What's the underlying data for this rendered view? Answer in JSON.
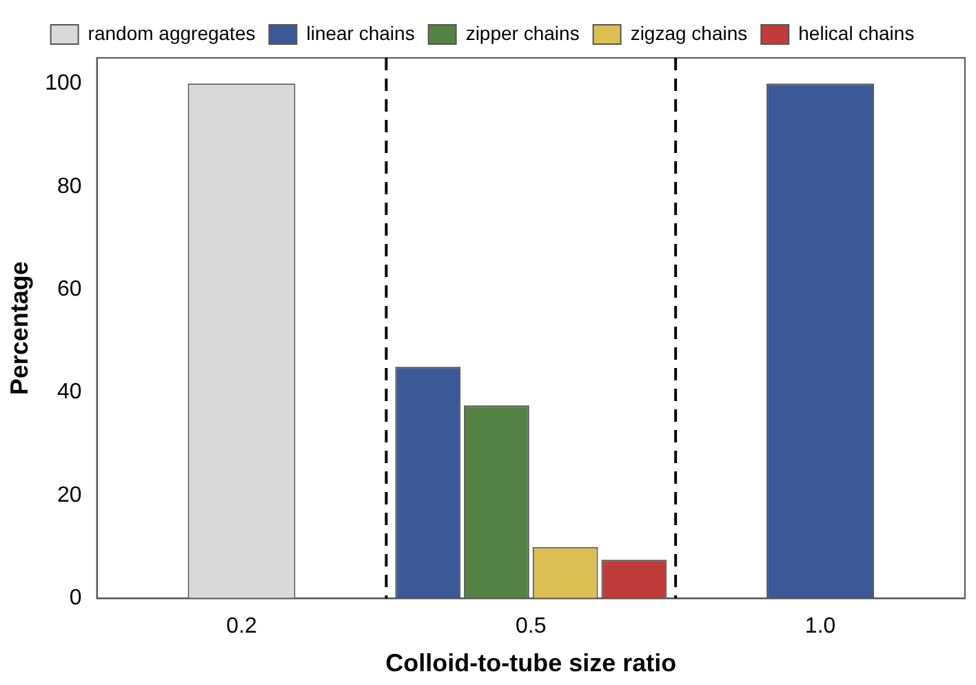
{
  "chart_data": {
    "type": "bar",
    "xlabel": "Colloid-to-tube size ratio",
    "ylabel": "Percentage",
    "categories": [
      "0.2",
      "0.5",
      "1.0"
    ],
    "series": [
      {
        "name": "random aggregates",
        "color": "#d9d9d9",
        "values": [
          100,
          null,
          null
        ]
      },
      {
        "name": "linear chains",
        "color": "#3d5896",
        "values": [
          null,
          45,
          100
        ]
      },
      {
        "name": "zipper chains",
        "color": "#548245",
        "values": [
          null,
          37.5,
          null
        ]
      },
      {
        "name": "zigzag chains",
        "color": "#dbbf53",
        "values": [
          null,
          10,
          null
        ]
      },
      {
        "name": "helical chains",
        "color": "#bf3c3a",
        "values": [
          null,
          7.5,
          null
        ]
      }
    ],
    "ylim": [
      0,
      105
    ],
    "yticks": [
      0,
      20,
      40,
      60,
      80,
      100
    ],
    "grid": false,
    "legend": "top"
  }
}
